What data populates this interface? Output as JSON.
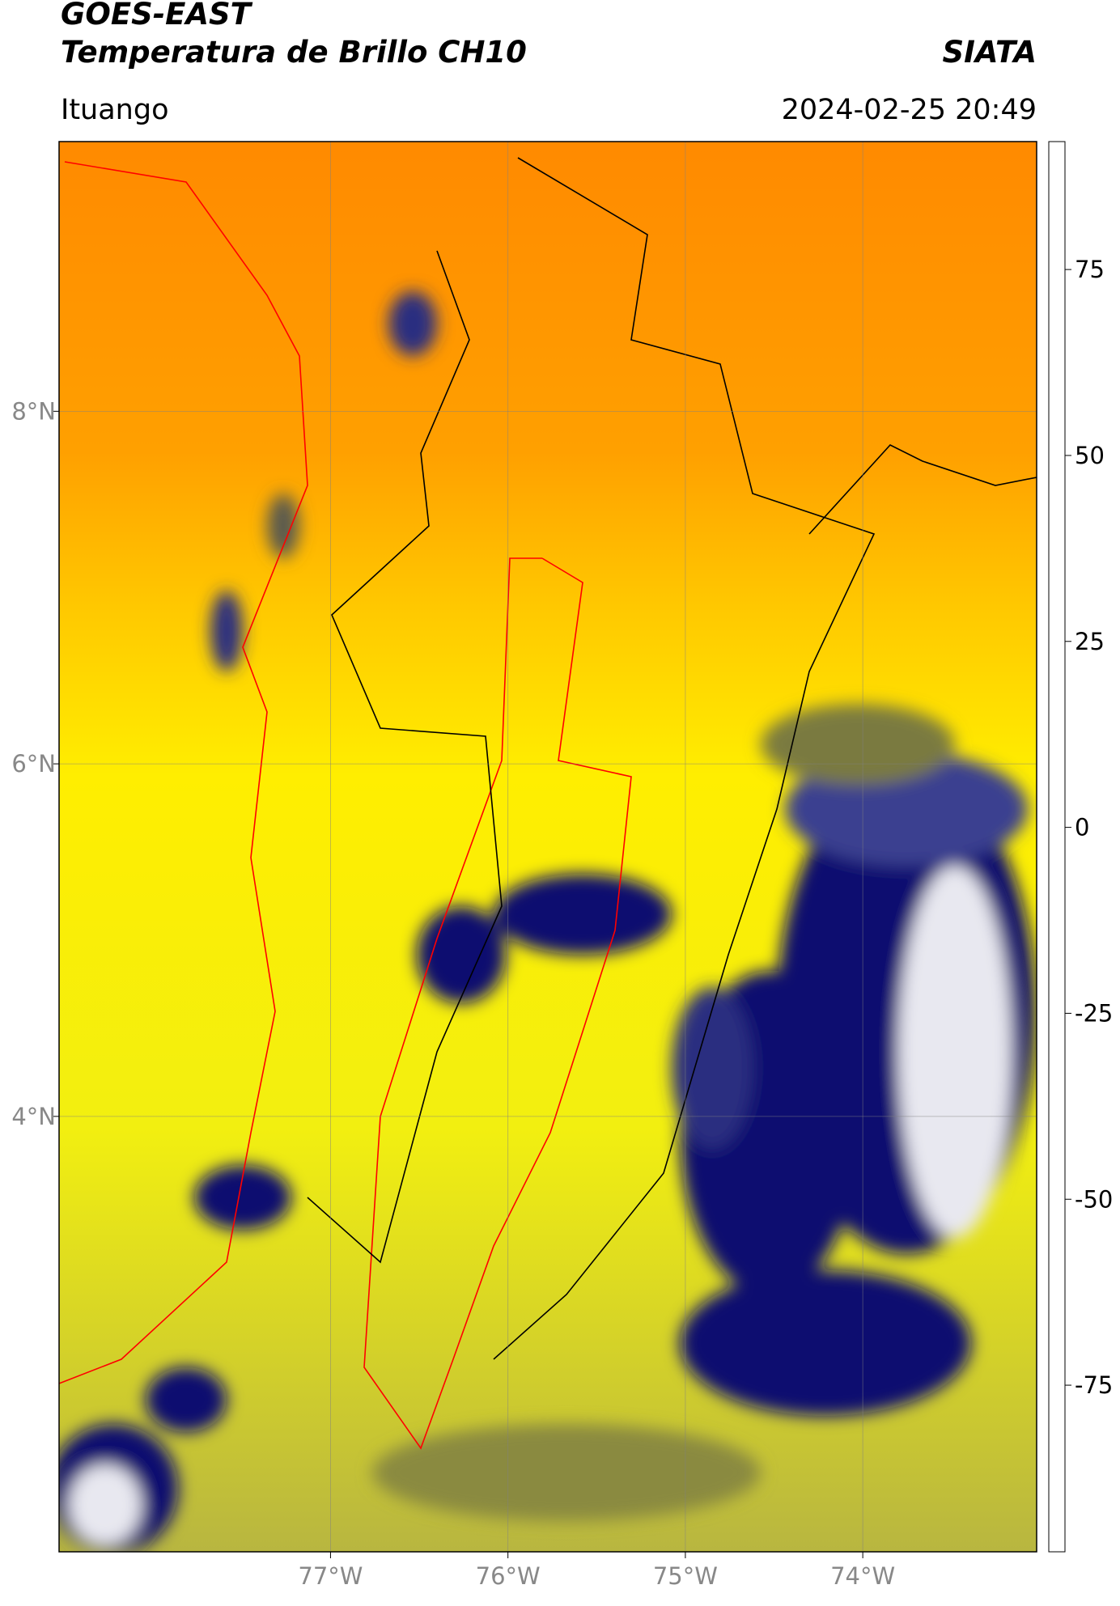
{
  "chart_data": {
    "type": "map",
    "title": "GOES-EAST",
    "subtitle": "Temperatura de Brillo CH10",
    "source": "SIATA",
    "location": "Ituango",
    "datetime": "2024-02-25 20:49",
    "xlim": [
      -78.53,
      -73.02
    ],
    "ylim": [
      1.53,
      9.53
    ],
    "xticks": [
      {
        "value": -77,
        "label": "77°W"
      },
      {
        "value": -76,
        "label": "76°W"
      },
      {
        "value": -75,
        "label": "75°W"
      },
      {
        "value": -74,
        "label": "74°W"
      }
    ],
    "yticks": [
      {
        "value": 8,
        "label": "8°N"
      },
      {
        "value": 6,
        "label": "6°N"
      },
      {
        "value": 4,
        "label": "4°N"
      }
    ],
    "grid": true,
    "clim": [
      -97.4,
      92.2
    ],
    "cticks": [
      75,
      50,
      25,
      0,
      -25,
      -50,
      -75
    ],
    "colorscale": [
      [
        -97.4,
        "#ffffff"
      ],
      [
        -95,
        "#00e0e0"
      ],
      [
        -80,
        "#2a9a80"
      ],
      [
        -65,
        "#3a7a30"
      ],
      [
        -50,
        "#ffffff"
      ],
      [
        -38,
        "#6a70b0"
      ],
      [
        -28,
        "#0a1070"
      ],
      [
        -20,
        "#7a7a40"
      ],
      [
        -15,
        "#f0f000"
      ],
      [
        -5,
        "#ffff00"
      ],
      [
        0,
        "#ff9900"
      ],
      [
        8,
        "#ff0000"
      ],
      [
        9,
        "#000000"
      ],
      [
        92.2,
        "#000000"
      ]
    ]
  }
}
